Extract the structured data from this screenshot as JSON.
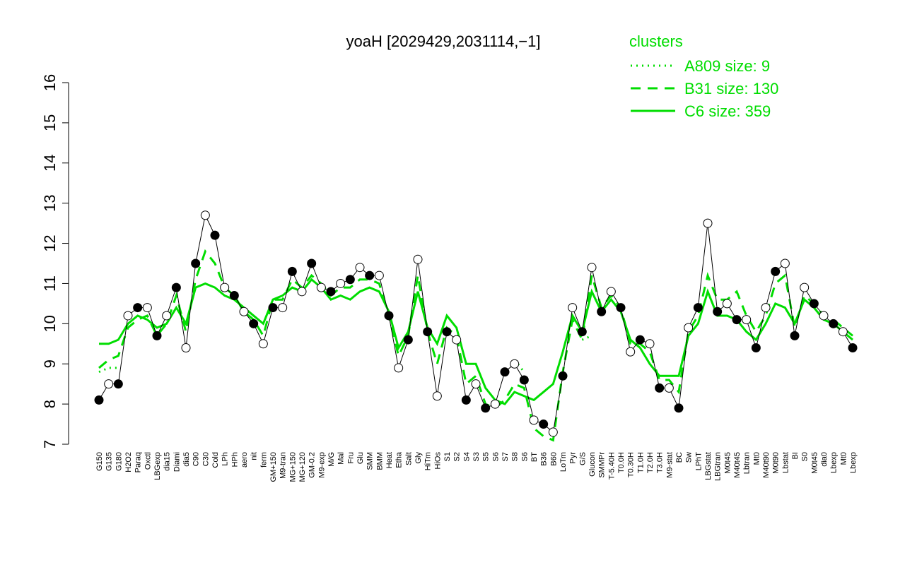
{
  "chart_data": {
    "type": "line",
    "title": "yoaH [2029429,2031114,−1]",
    "legend_title": "clusters",
    "categories": [
      "G150",
      "G135",
      "G180",
      "H2O2",
      "Paraq",
      "Oxctl",
      "LBGexp",
      "dia15",
      "Diami",
      "dia5",
      "C90",
      "C30",
      "Cold",
      "LPh",
      "HPh",
      "aero",
      "nit",
      "ferm",
      "GM+150",
      "M9-tran",
      "MG+150",
      "MG+120",
      "GM-0.2",
      "M9-exp",
      "M/G",
      "Mal",
      "Fru",
      "Glu",
      "SMM",
      "BMM",
      "Heat",
      "Etha",
      "Salt",
      "Gly",
      "HiTm",
      "HiOs",
      "S1",
      "S2",
      "S4",
      "S3",
      "S5",
      "S6",
      "S7",
      "S8",
      "S6",
      "BT",
      "B36",
      "B60",
      "LoTm",
      "Pyr",
      "G/S",
      "Glucon",
      "SMMPr",
      "T-5.40H",
      "T0.0H",
      "T0.30H",
      "T1.0H",
      "T2.0H",
      "T3.0H",
      "M9-stat",
      "BC",
      "Sw",
      "LPhT",
      "LBGstat",
      "LBGtran",
      "M0t45",
      "M40t45",
      "Lbtran",
      "Mt0",
      "M40t90",
      "M0t90",
      "Lbstat",
      "BI",
      "S0",
      "M0t45",
      "dia0",
      "Lbexp",
      "Mt0",
      "Lbexp"
    ],
    "values": [
      8.1,
      8.5,
      8.5,
      10.2,
      10.4,
      10.4,
      9.7,
      10.2,
      10.9,
      9.4,
      11.5,
      12.7,
      12.2,
      10.9,
      10.7,
      10.3,
      10.0,
      9.5,
      10.4,
      10.4,
      11.3,
      10.8,
      11.5,
      10.9,
      10.8,
      11.0,
      11.1,
      11.4,
      11.2,
      11.2,
      10.2,
      8.9,
      9.6,
      11.6,
      9.8,
      8.2,
      9.8,
      9.6,
      8.1,
      8.5,
      7.9,
      8.0,
      8.8,
      9.0,
      8.6,
      7.6,
      7.5,
      7.3,
      8.7,
      10.4,
      9.8,
      11.4,
      10.3,
      10.8,
      10.4,
      9.3,
      9.6,
      9.5,
      8.4,
      8.4,
      7.9,
      9.9,
      10.4,
      12.5,
      10.3,
      10.5,
      10.1,
      10.1,
      9.4,
      10.4,
      11.3,
      11.5,
      9.7,
      10.9,
      10.5,
      10.2,
      10.0,
      9.8,
      9.4
    ],
    "color": "#000000",
    "series": [
      {
        "name": "A809 size: 9",
        "color": "#00dd00",
        "style": "dotted",
        "values": [
          8.8,
          8.9,
          8.9,
          null,
          null,
          null,
          null,
          null,
          null,
          null,
          null,
          null,
          null,
          null,
          null,
          null,
          null,
          null,
          null,
          null,
          null,
          null,
          null,
          null,
          null,
          null,
          null,
          null,
          null,
          null,
          null,
          null,
          null,
          null,
          null,
          null,
          null,
          null,
          null,
          null,
          null,
          null,
          null,
          9.1,
          8.8,
          null,
          null,
          null,
          null,
          null,
          9.6,
          9.7,
          null,
          null,
          null,
          null,
          null,
          null,
          null,
          null,
          null,
          null,
          null,
          null,
          null,
          null,
          null,
          null,
          null,
          null,
          null,
          null,
          null,
          null,
          null,
          null,
          null,
          null,
          null
        ]
      },
      {
        "name": "B31 size: 130",
        "color": "#00dd00",
        "style": "dashed",
        "values": [
          8.9,
          9.1,
          9.2,
          9.9,
          10.1,
          10.2,
          9.7,
          10.0,
          10.7,
          9.8,
          11.1,
          11.8,
          11.5,
          10.9,
          10.7,
          10.3,
          10.1,
          9.7,
          10.6,
          10.6,
          11.1,
          10.9,
          11.2,
          11.0,
          10.7,
          10.9,
          10.9,
          11.1,
          11.1,
          11.0,
          10.2,
          9.2,
          9.7,
          11.2,
          9.8,
          9.0,
          9.9,
          9.7,
          8.5,
          8.7,
          8.0,
          7.9,
          8.1,
          8.5,
          8.4,
          7.4,
          7.2,
          7.1,
          8.8,
          10.1,
          9.6,
          11.2,
          10.4,
          10.7,
          10.4,
          9.5,
          9.5,
          9.3,
          8.6,
          8.6,
          8.3,
          9.8,
          10.2,
          11.2,
          10.6,
          10.6,
          10.8,
          10.2,
          9.8,
          10.2,
          11.0,
          11.2,
          9.9,
          10.7,
          10.5,
          10.2,
          10.1,
          9.9,
          9.7
        ]
      },
      {
        "name": "C6 size: 359",
        "color": "#00dd00",
        "style": "solid",
        "values": [
          9.5,
          9.5,
          9.6,
          10.0,
          10.2,
          10.1,
          9.9,
          10.0,
          10.4,
          10.0,
          10.9,
          11.0,
          10.9,
          10.7,
          10.6,
          10.4,
          10.2,
          10.0,
          10.6,
          10.7,
          10.9,
          10.8,
          11.1,
          10.9,
          10.6,
          10.7,
          10.6,
          10.8,
          10.9,
          10.8,
          10.3,
          9.4,
          9.8,
          10.8,
          9.9,
          9.5,
          10.2,
          9.9,
          9.0,
          9.0,
          8.4,
          8.1,
          8.0,
          8.3,
          8.2,
          8.1,
          8.3,
          8.5,
          9.3,
          10.2,
          9.8,
          10.8,
          10.3,
          10.6,
          10.3,
          9.6,
          9.4,
          9.0,
          8.7,
          8.7,
          8.7,
          9.7,
          10.0,
          10.8,
          10.2,
          10.2,
          10.1,
          9.8,
          9.6,
          10.0,
          10.5,
          10.4,
          10.0,
          10.6,
          10.4,
          10.1,
          10.0,
          9.8,
          9.6
        ]
      }
    ],
    "ylim": [
      7,
      16
    ],
    "yticks": [
      7,
      8,
      9,
      10,
      11,
      12,
      13,
      14,
      15,
      16
    ],
    "grid": false
  }
}
